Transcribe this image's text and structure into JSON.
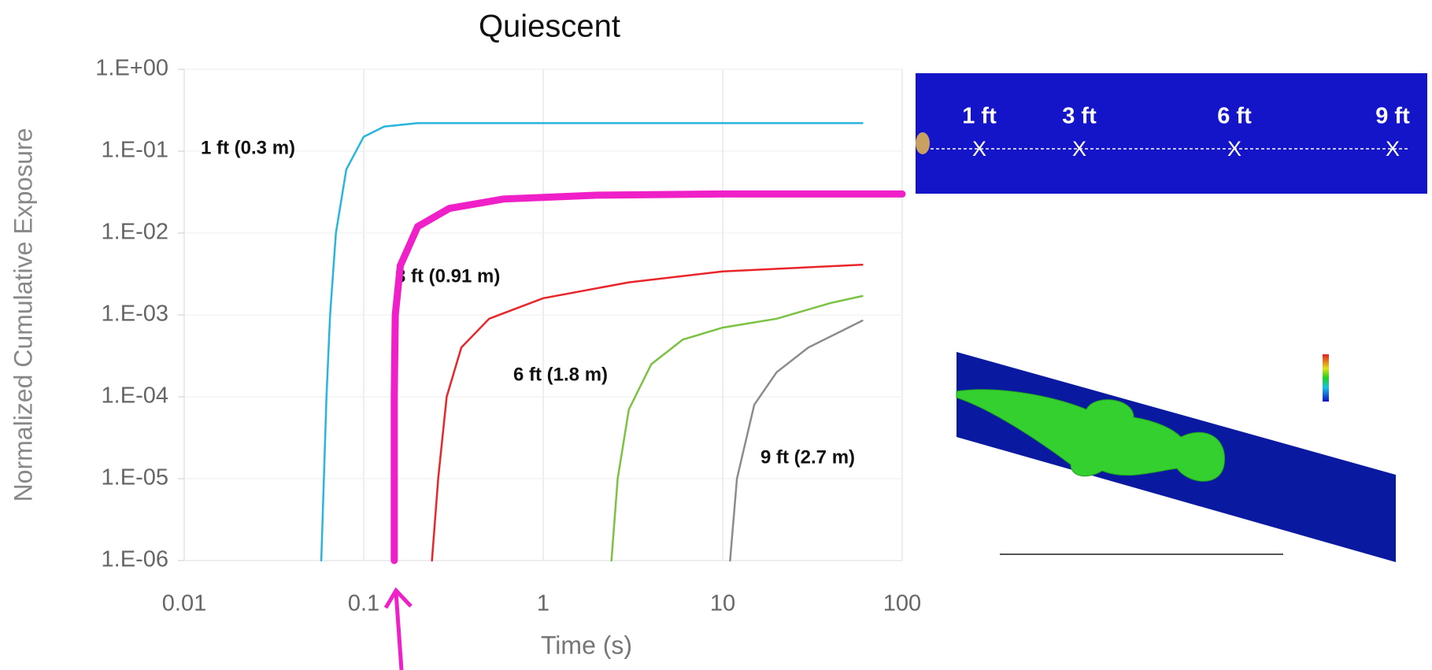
{
  "chart_data": {
    "type": "line",
    "title": "Quiescent",
    "x_label": "Time (s)",
    "y_label": "Normalized Cumulative Exposure",
    "x_log": true,
    "y_log": true,
    "grid": true,
    "xlim": [
      0.01,
      100
    ],
    "xticks": [
      0.01,
      0.1,
      1,
      10,
      100
    ],
    "ylim": [
      1e-06,
      1
    ],
    "yticks": [
      {
        "value": 1,
        "label": "1.E+00"
      },
      {
        "value": 0.1,
        "label": "1.E-01"
      },
      {
        "value": 0.01,
        "label": "1.E-02"
      },
      {
        "value": 0.001,
        "label": "1.E-03"
      },
      {
        "value": 0.0001,
        "label": "1.E-04"
      },
      {
        "value": 1e-05,
        "label": "1.E-05"
      },
      {
        "value": 1e-06,
        "label": "1.E-06"
      }
    ],
    "series": [
      {
        "name": "1 ft (0.3 m)",
        "color": "#29b5dc",
        "x": [
          0.058,
          0.06,
          0.062,
          0.065,
          0.07,
          0.08,
          0.1,
          0.13,
          0.2,
          1,
          10,
          60
        ],
        "values": [
          1e-06,
          1e-05,
          0.0001,
          0.001,
          0.01,
          0.06,
          0.15,
          0.2,
          0.22,
          0.22,
          0.22,
          0.22
        ]
      },
      {
        "name": "3 ft (0.91 m)",
        "color": "#e8262a",
        "x": [
          0.24,
          0.26,
          0.29,
          0.35,
          0.5,
          1,
          3,
          10,
          60
        ],
        "values": [
          1e-06,
          1e-05,
          0.0001,
          0.0004,
          0.0009,
          0.0016,
          0.0025,
          0.0034,
          0.0041
        ]
      },
      {
        "name": "6 ft (1.8 m)",
        "color": "#7cc242",
        "x": [
          2.4,
          2.6,
          3,
          4,
          6,
          10,
          20,
          40,
          60
        ],
        "values": [
          1e-06,
          1e-05,
          7e-05,
          0.00025,
          0.0005,
          0.0007,
          0.0009,
          0.0014,
          0.0017
        ]
      },
      {
        "name": "9 ft (2.7 m)",
        "color": "#8c8c8c",
        "x": [
          11,
          12,
          15,
          20,
          30,
          60
        ],
        "values": [
          1e-06,
          1e-05,
          8e-05,
          0.0002,
          0.0004,
          0.00085
        ]
      },
      {
        "color": "#f020c8",
        "x": [
          0.148,
          0.148,
          0.15,
          0.16,
          0.2,
          0.3,
          0.6,
          2,
          10,
          100
        ],
        "values": [
          1e-06,
          0.0001,
          0.001,
          0.004,
          0.012,
          0.02,
          0.026,
          0.029,
          0.03,
          0.03
        ]
      }
    ]
  },
  "inset": {
    "labels": [
      "1 ft",
      "3 ft",
      "6 ft",
      "9 ft"
    ],
    "marker": "X"
  }
}
